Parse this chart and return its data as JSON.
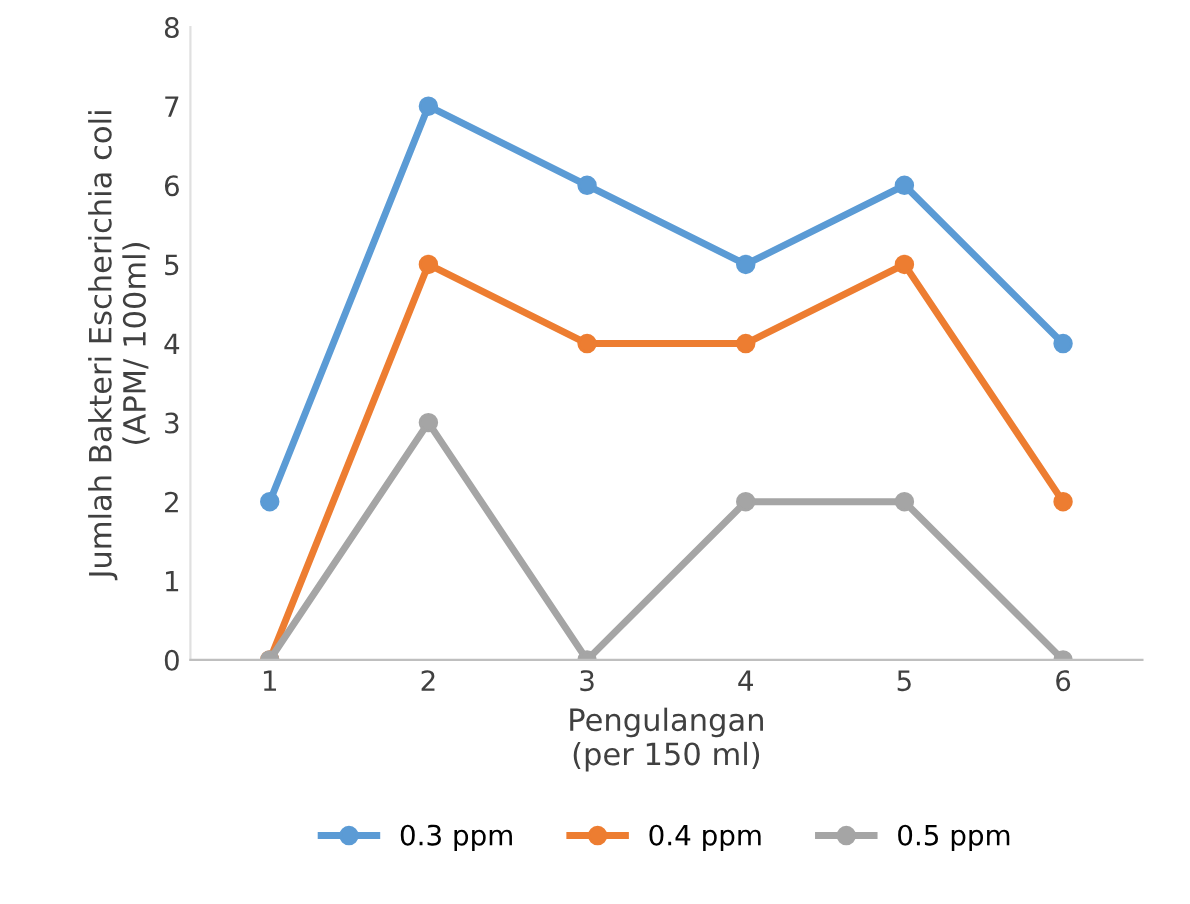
{
  "chart_data": {
    "type": "line",
    "xlabel": "Pengulangan\n(per 150 ml)",
    "ylabel": "Jumlah Bakteri Escherichia coli\n(APM/ 100ml)",
    "categories": [
      "1",
      "2",
      "3",
      "4",
      "5",
      "6"
    ],
    "series": [
      {
        "name": "0.3 ppm",
        "color": "#5b9bd5",
        "values": [
          2,
          7,
          6,
          5,
          6,
          4
        ]
      },
      {
        "name": "0.4 ppm",
        "color": "#ed7d31",
        "values": [
          0,
          5,
          4,
          4,
          5,
          2
        ]
      },
      {
        "name": "0.5 ppm",
        "color": "#a5a5a5",
        "values": [
          0,
          3,
          0,
          2,
          2,
          0
        ]
      }
    ],
    "ylim": [
      0,
      8
    ],
    "yticks": [
      0,
      1,
      2,
      3,
      4,
      5,
      6,
      7,
      8
    ],
    "grid": false,
    "legend": "bottom",
    "marker": "circle",
    "line_style": "solid"
  }
}
